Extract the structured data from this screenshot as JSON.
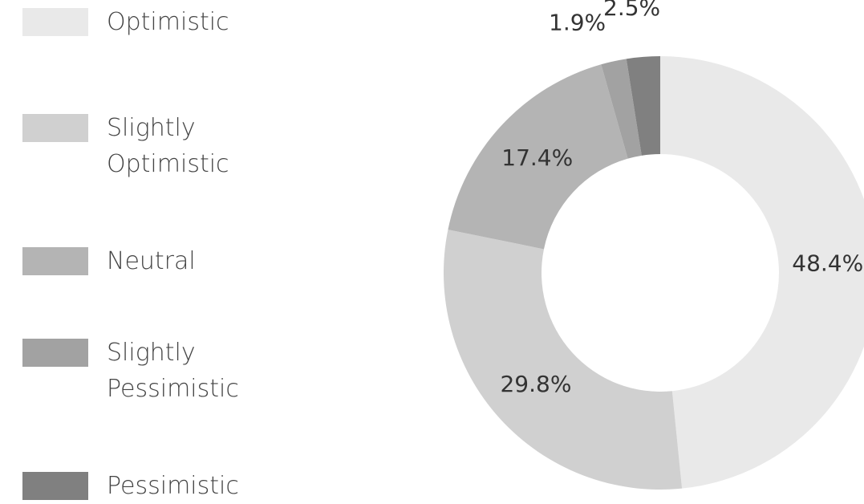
{
  "chart_data": {
    "type": "donut",
    "categories": [
      "Optimistic",
      "Slightly Optimistic",
      "Neutral",
      "Slightly Pessimistic",
      "Pessimistic"
    ],
    "values": [
      48.4,
      29.8,
      17.4,
      1.9,
      2.5
    ],
    "value_labels": [
      "48.4%",
      "29.8%",
      "17.4%",
      "1.9%",
      "2.5%"
    ],
    "colors": [
      "#e9e9e9",
      "#d0d0d0",
      "#b4b4b4",
      "#a2a2a2",
      "#808080"
    ],
    "legend": "left"
  }
}
